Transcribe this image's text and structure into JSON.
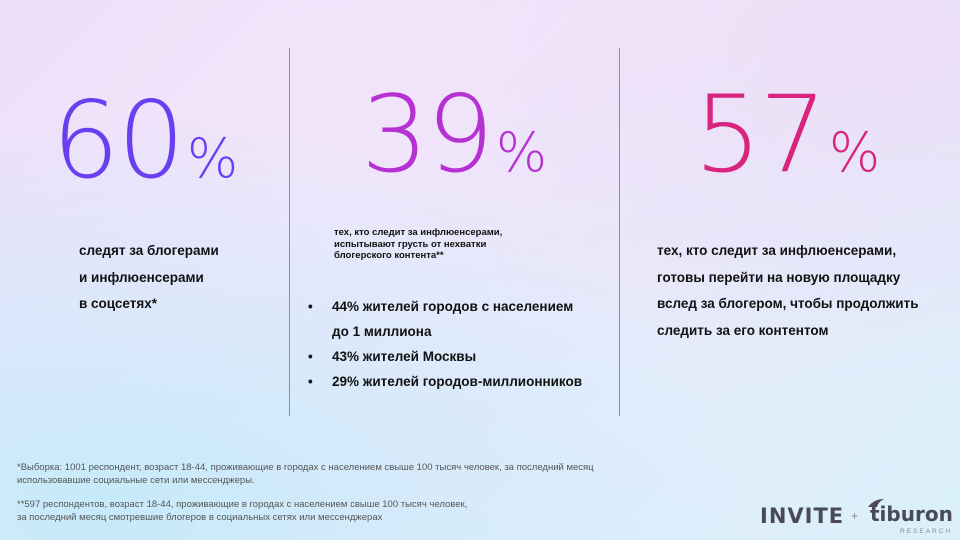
{
  "colors": {
    "stat1": "#6a3ff0",
    "stat2": "#b531d2",
    "stat3": "#d8237f",
    "divider": "#7a8fd6"
  },
  "stats": [
    {
      "number": "60",
      "percent": "%",
      "text_lines": [
        "следят за блогерами",
        "и инфлюенсерами",
        "в соцсетях*"
      ]
    },
    {
      "number": "39",
      "percent": "%",
      "note_lines": [
        "тех, кто следит за инфлюенсерами,",
        "испытывают грусть от нехватки",
        "блогерского контента**"
      ],
      "bullets": [
        {
          "symbol": "•",
          "lines": [
            "44% жителей городов с населением",
            "до 1 миллиона"
          ]
        },
        {
          "symbol": "•",
          "lines": [
            "43% жителей Москвы"
          ]
        },
        {
          "symbol": "•",
          "lines": [
            "29% жителей городов-миллионников"
          ]
        }
      ]
    },
    {
      "number": "57",
      "percent": "%",
      "text_lines": [
        "тех, кто следит за инфлюенсерами,",
        "готовы перейти на новую площадку",
        "вслед за блогером, чтобы продолжить",
        "следить за его контентом"
      ]
    }
  ],
  "footnotes": [
    [
      "*Выборка: 1001 респондент, возраст 18-44, проживающие в городах с населением свыше 100 тысяч человек, за последний месяц",
      "использовавшие социальные сети или мессенджеры."
    ],
    [
      "**597 респондентов, возраст 18-44, проживающие в городах с населением свыше 100 тысяч человек,",
      "за последний месяц смотревшие блогеров в социальных сетях или мессенджерах"
    ]
  ],
  "logos": {
    "invite": "INVITE",
    "plus": "+",
    "tiburon": "tiburon",
    "research": "RESEARCH"
  }
}
